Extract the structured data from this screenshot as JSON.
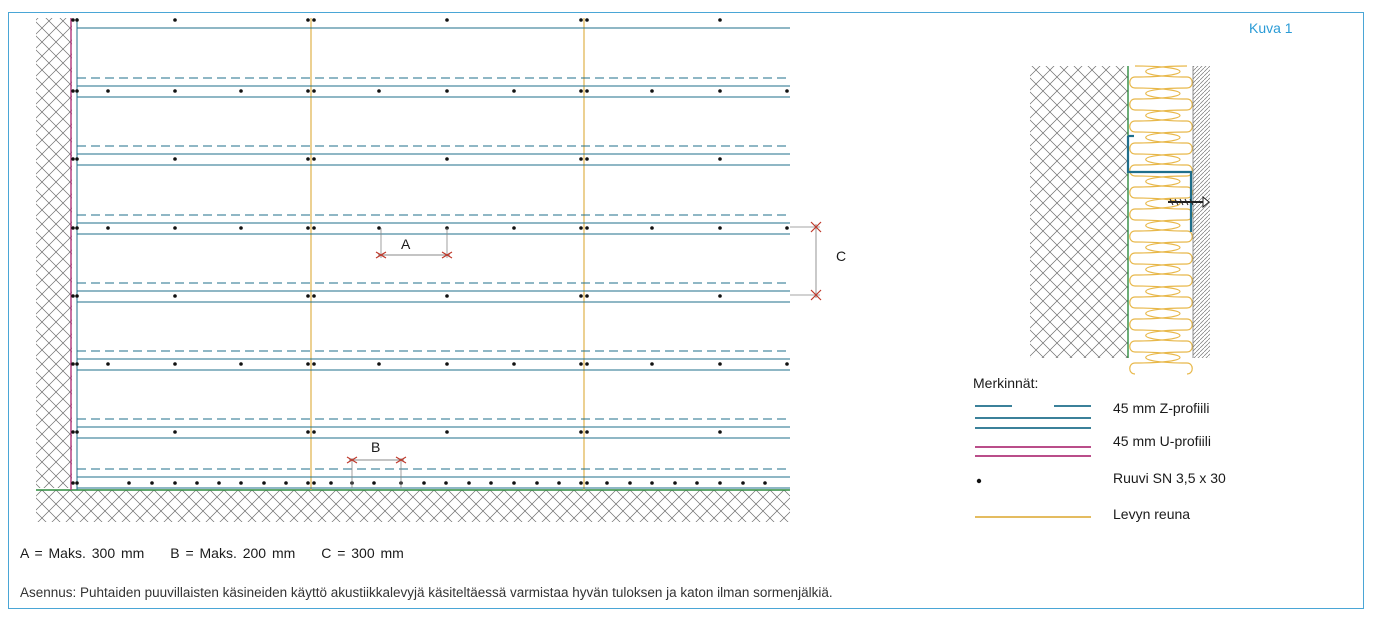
{
  "figure": {
    "title": "Kuva 1"
  },
  "dimension_labels": {
    "a": "A",
    "b": "B",
    "c": "C"
  },
  "dimension_notes": {
    "a": "A = Maks. 300 mm",
    "b": "B = Maks. 200 mm",
    "c": "C = 300 mm"
  },
  "note": "Asennus: Puhtaiden puuvillaisten käsineiden käyttö akustiikkalevyjä käsiteltäessä varmistaa hyvän tuloksen ja katon ilman sormenjälkiä.",
  "legend": {
    "title": "Merkinnät:",
    "items": [
      {
        "label": "45 mm Z-profiili",
        "symbol": "z-profile-line",
        "color": "#1f6f8b"
      },
      {
        "label": "45 mm U-profiili",
        "symbol": "u-profile-line",
        "color": "#b0357a"
      },
      {
        "label": "Ruuvi SN 3,5 x 30",
        "symbol": "screw-dot",
        "color": "#111111"
      },
      {
        "label": "Levyn reuna",
        "symbol": "board-edge-line",
        "color": "#e0b24a"
      }
    ]
  },
  "colors": {
    "frame": "#4aa6d6",
    "z_profile": "#1f6f8b",
    "u_profile": "#b0357a",
    "board_edge": "#e0b24a",
    "dimension": "#c0392b",
    "insulation": "#e8b84a",
    "floor": "#2e8b3e"
  }
}
